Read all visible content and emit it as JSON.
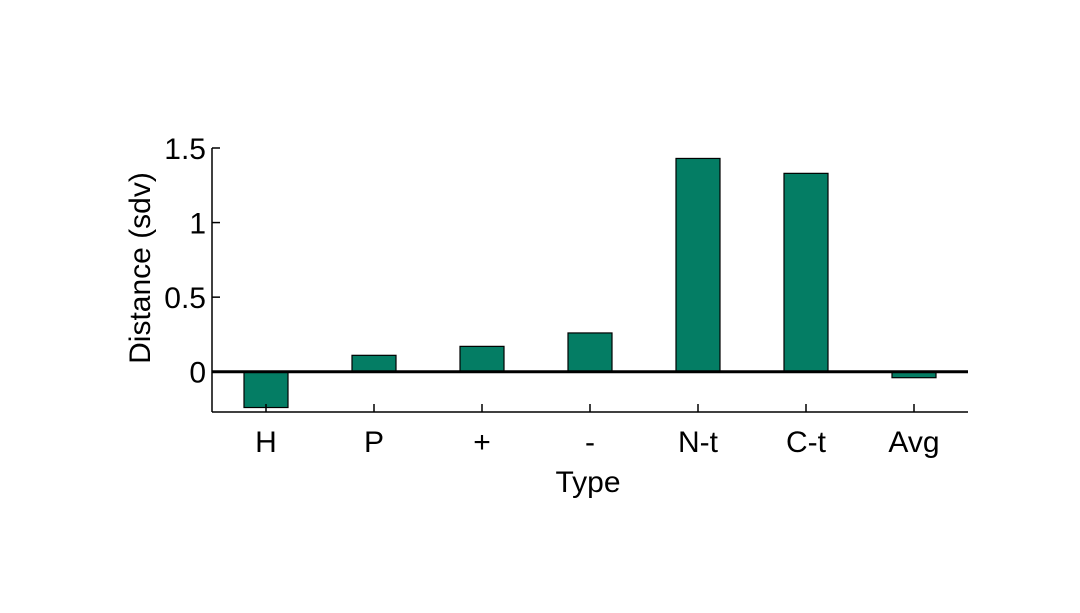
{
  "colors": {
    "bar_fill": "#047D64",
    "bar_stroke": "#000000",
    "axis": "#000000",
    "background": "#ffffff"
  },
  "chart_data": {
    "type": "bar",
    "categories": [
      "H",
      "P",
      "+",
      "-",
      "N-t",
      "C-t",
      "Avg"
    ],
    "values": [
      -0.24,
      0.11,
      0.17,
      0.26,
      1.43,
      1.33,
      -0.04
    ],
    "xlabel": "Type",
    "ylabel": "Distance (sdv)",
    "ylim": [
      -0.27,
      1.5
    ],
    "yticks": [
      0,
      0.5,
      1,
      1.5
    ],
    "ytick_labels": [
      "0",
      "0.5",
      "1",
      "1.5"
    ],
    "zero_line": true,
    "grid": false,
    "legend": "none"
  }
}
